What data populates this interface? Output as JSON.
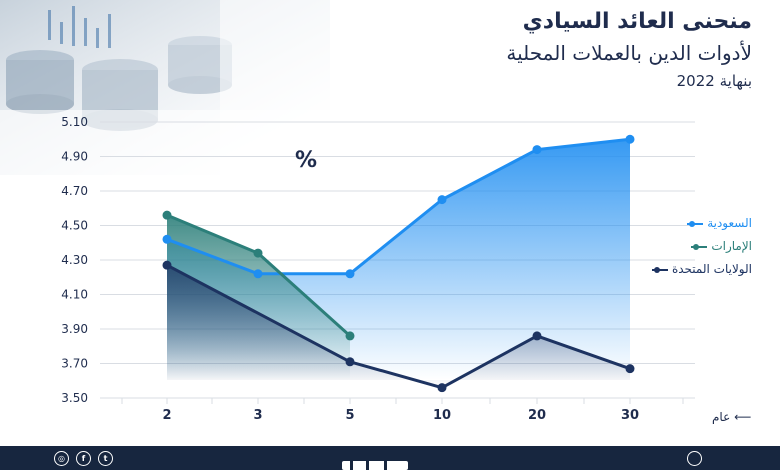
{
  "title": {
    "line1": "منحنى العائد السيادي",
    "line2": "لأدوات الدين بالعملات المحلية",
    "line3": "بنهاية 2022"
  },
  "colors": {
    "saudi": "#1f8ef1",
    "uae": "#2c7f7a",
    "usa": "#1d3361",
    "grid": "#d9dde3",
    "text": "#1f2c4d",
    "footer": "#17263f"
  },
  "footer": {
    "icons": [
      "instagram-icon",
      "facebook-icon",
      "twitter-icon"
    ]
  },
  "chart_data": {
    "type": "line",
    "unit_label": "%",
    "x_axis_label": "عام",
    "categories": [
      "2",
      "3",
      "5",
      "10",
      "20",
      "30"
    ],
    "y_ticks": [
      "5.10",
      "4.90",
      "4.70",
      "4.50",
      "4.30",
      "4.10",
      "3.90",
      "3.70",
      "3.50"
    ],
    "ylim": [
      3.5,
      5.1
    ],
    "grid": "horizontal",
    "legend_position": "right",
    "series": [
      {
        "name": "السعودية",
        "color": "#1f8ef1",
        "values": [
          4.42,
          4.22,
          4.22,
          4.65,
          4.94,
          5.0
        ]
      },
      {
        "name": "الإمارات",
        "color": "#2c7f7a",
        "values": [
          4.56,
          4.34,
          3.86,
          null,
          null,
          null
        ]
      },
      {
        "name": "الولايات المتحدة",
        "color": "#1d3361",
        "values": [
          4.27,
          null,
          3.71,
          3.56,
          3.86,
          3.67
        ]
      }
    ]
  }
}
